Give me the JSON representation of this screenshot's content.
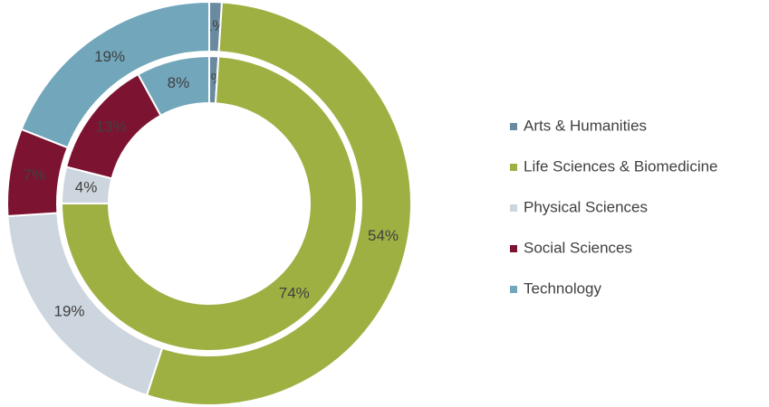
{
  "chart_data": {
    "type": "doughnut",
    "categories": [
      "Arts & Humanities",
      "Life Sciences & Biomedicine",
      "Physical Sciences",
      "Social Sciences",
      "Technology"
    ],
    "colors": [
      "#6a8aa0",
      "#9fb043",
      "#cdd6de",
      "#7c1431",
      "#72a6bb"
    ],
    "series": [
      {
        "values": [
          1,
          54,
          19,
          7,
          19
        ],
        "value_labels": [
          "1%",
          "54%",
          "19%",
          "7%",
          "19%"
        ]
      },
      {
        "values": [
          1,
          74,
          4,
          13,
          8
        ],
        "value_labels": [
          "1%",
          "74%",
          "4%",
          "13%",
          "8%"
        ]
      }
    ],
    "legend": "right"
  }
}
